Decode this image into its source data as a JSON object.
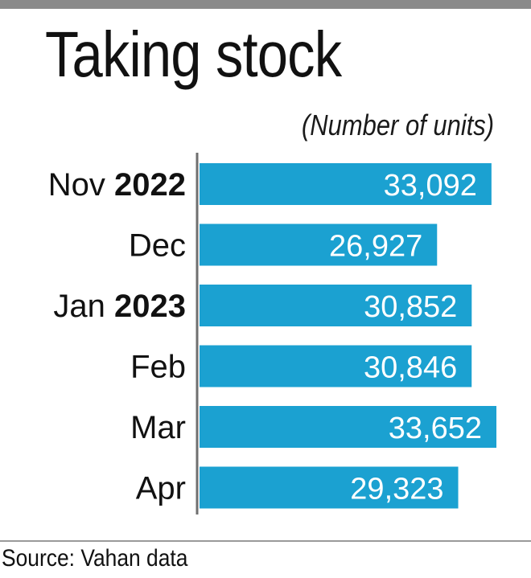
{
  "title": "Taking stock",
  "subtitle": "(Number of units)",
  "source": "Source: Vahan data",
  "colors": {
    "bar": "#1ba1d1",
    "bar_label": "#ffffff",
    "axis": "#6f6f6f",
    "top_bar": "#8a8a8a"
  },
  "chart_data": {
    "type": "bar",
    "orientation": "horizontal",
    "categories": [
      {
        "month": "Nov",
        "year": "2022"
      },
      {
        "month": "Dec",
        "year": ""
      },
      {
        "month": "Jan",
        "year": "2023"
      },
      {
        "month": "Feb",
        "year": ""
      },
      {
        "month": "Mar",
        "year": ""
      },
      {
        "month": "Apr",
        "year": ""
      }
    ],
    "values": [
      33092,
      26927,
      30852,
      30846,
      33652,
      29323
    ],
    "value_labels": [
      "33,092",
      "26,927",
      "30,852",
      "30,846",
      "33,652",
      "29,323"
    ],
    "xlim": [
      0,
      33652
    ],
    "grid": false
  }
}
